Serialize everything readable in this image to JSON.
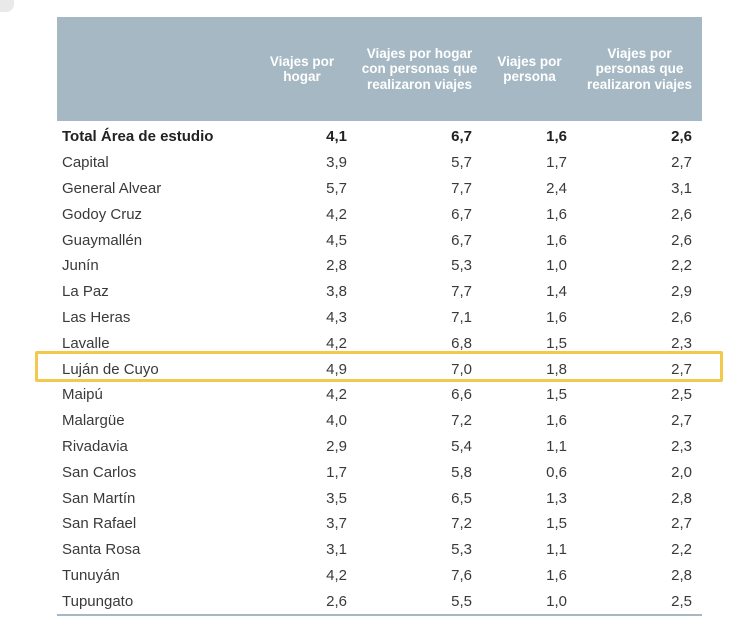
{
  "table": {
    "headers": [
      "",
      "Viajes por hogar",
      "Viajes por hogar con personas que realizaron viajes",
      "Viajes por persona",
      "Viajes por personas que realizaron viajes"
    ],
    "rows": [
      {
        "name": "Total Área de estudio",
        "values": [
          "4,1",
          "6,7",
          "1,6",
          "2,6"
        ]
      },
      {
        "name": "Capital",
        "values": [
          "3,9",
          "5,7",
          "1,7",
          "2,7"
        ]
      },
      {
        "name": "General Alvear",
        "values": [
          "5,7",
          "7,7",
          "2,4",
          "3,1"
        ]
      },
      {
        "name": "Godoy Cruz",
        "values": [
          "4,2",
          "6,7",
          "1,6",
          "2,6"
        ]
      },
      {
        "name": "Guaymallén",
        "values": [
          "4,5",
          "6,7",
          "1,6",
          "2,6"
        ]
      },
      {
        "name": "Junín",
        "values": [
          "2,8",
          "5,3",
          "1,0",
          "2,2"
        ]
      },
      {
        "name": "La Paz",
        "values": [
          "3,8",
          "7,7",
          "1,4",
          "2,9"
        ]
      },
      {
        "name": "Las Heras",
        "values": [
          "4,3",
          "7,1",
          "1,6",
          "2,6"
        ]
      },
      {
        "name": "Lavalle",
        "values": [
          "4,2",
          "6,8",
          "1,5",
          "2,3"
        ]
      },
      {
        "name": "Luján de Cuyo",
        "values": [
          "4,9",
          "7,0",
          "1,8",
          "2,7"
        ]
      },
      {
        "name": "Maipú",
        "values": [
          "4,2",
          "6,6",
          "1,5",
          "2,5"
        ]
      },
      {
        "name": "Malargüe",
        "values": [
          "4,0",
          "7,2",
          "1,6",
          "2,7"
        ]
      },
      {
        "name": "Rivadavia",
        "values": [
          "2,9",
          "5,4",
          "1,1",
          "2,3"
        ]
      },
      {
        "name": "San Carlos",
        "values": [
          "1,7",
          "5,8",
          "0,6",
          "2,0"
        ]
      },
      {
        "name": "San Martín",
        "values": [
          "3,5",
          "6,5",
          "1,3",
          "2,8"
        ]
      },
      {
        "name": "San Rafael",
        "values": [
          "3,7",
          "7,2",
          "1,5",
          "2,7"
        ]
      },
      {
        "name": "Santa Rosa",
        "values": [
          "3,1",
          "5,3",
          "1,1",
          "2,2"
        ]
      },
      {
        "name": "Tunuyán",
        "values": [
          "4,2",
          "7,6",
          "1,6",
          "2,8"
        ]
      },
      {
        "name": "Tupungato",
        "values": [
          "2,6",
          "5,5",
          "1,0",
          "2,5"
        ]
      }
    ]
  },
  "colors": {
    "header_bg": "#a5b8c4",
    "highlight_border": "#f2c94c"
  }
}
